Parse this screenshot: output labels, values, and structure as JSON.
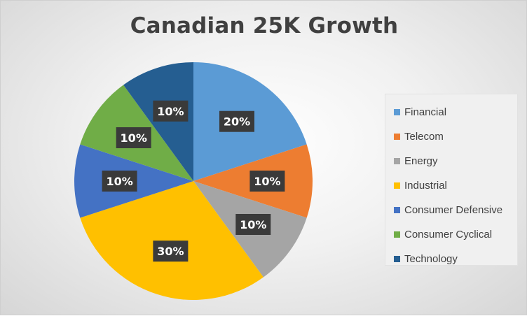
{
  "chart_data": {
    "type": "pie",
    "title": "Canadian 25K Growth",
    "categories": [
      "Financial",
      "Telecom",
      "Energy",
      "Industrial",
      "Consumer Defensive",
      "Consumer Cyclical",
      "Technology"
    ],
    "values": [
      20,
      10,
      10,
      30,
      10,
      10,
      10
    ],
    "data_labels": [
      "20%",
      "10%",
      "10%",
      "30%",
      "10%",
      "10%",
      "10%"
    ],
    "colors": [
      "#5B9BD5",
      "#ED7D31",
      "#A5A5A5",
      "#FFC000",
      "#4472C4",
      "#70AD47",
      "#255E91"
    ],
    "legend_position": "right"
  }
}
